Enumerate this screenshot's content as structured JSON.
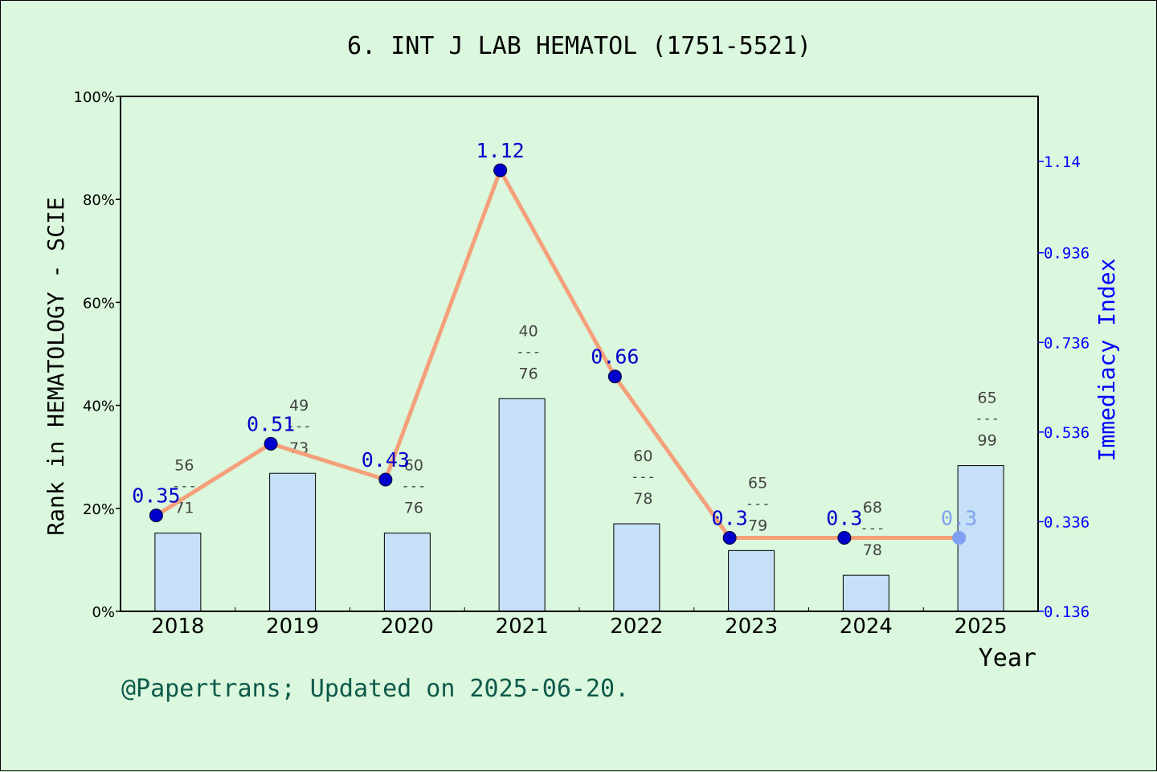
{
  "chart_data": {
    "type": "bar+line",
    "title": "6. INT J LAB HEMATOL (1751-5521)",
    "xlabel": "Year",
    "ylabel_left": "Rank in HEMATOLOGY - SCIE",
    "ylabel_right": "Immediacy Index",
    "categories": [
      "2018",
      "2019",
      "2020",
      "2021",
      "2022",
      "2023",
      "2024",
      "2025"
    ],
    "left_ylim": [
      0,
      100
    ],
    "left_ticks": [
      "0%",
      "20%",
      "40%",
      "60%",
      "80%",
      "100%"
    ],
    "right_ylim": [
      0.136,
      1.285
    ],
    "right_ticks": [
      "0.136",
      "0.336",
      "0.536",
      "0.736",
      "0.936",
      "1.14"
    ],
    "bars": {
      "rank": [
        56,
        49,
        60,
        40,
        60,
        65,
        68,
        65
      ],
      "total": [
        71,
        73,
        76,
        76,
        78,
        79,
        78,
        99
      ],
      "separator": "---",
      "values_pct": [
        15.2,
        26.8,
        15.2,
        41.3,
        17.0,
        11.8,
        7.0,
        28.3
      ],
      "color": "#c5e0f7"
    },
    "series": [
      {
        "name": "Immediacy Index",
        "values": [
          0.35,
          0.51,
          0.43,
          1.12,
          0.66,
          0.3,
          0.3,
          0.3
        ],
        "labels": [
          "0.35",
          "0.51",
          "0.43",
          "1.12",
          "0.66",
          "0.3",
          "0.3",
          "0.3"
        ],
        "line_color": "#f4a07a",
        "marker_color": "#0000cc",
        "last_marker_color": "#7f9ff0"
      }
    ],
    "grid": false
  },
  "footer": {
    "credit": "@Papertrans; Updated on 2025-06-20."
  },
  "colors": {
    "background": "#dbf7dd",
    "right_axis": "#0000ff",
    "footer_text": "#0d5a4a",
    "bar_label": "#444444"
  }
}
